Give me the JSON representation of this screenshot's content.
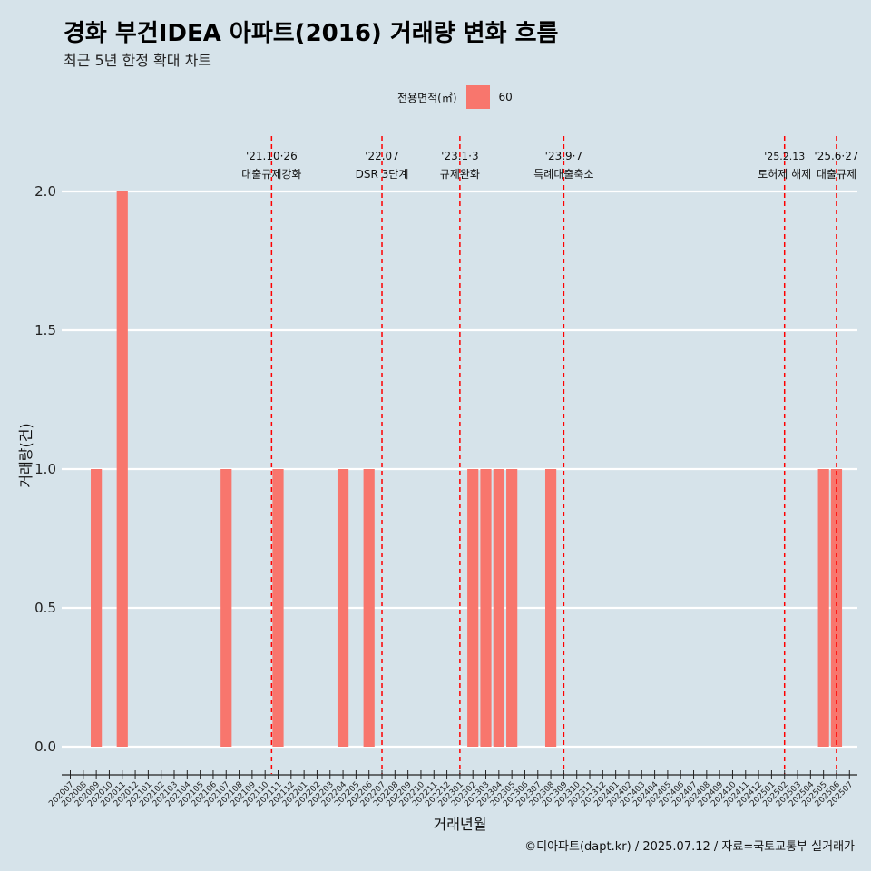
{
  "title": "경화 부건IDEA 아파트(2016) 거래량 변화 흐름",
  "subtitle": "최근 5년 한정 확대 차트",
  "caption": "©디아파트(dapt.kr) / 2025.07.12 / 자료=국토교통부 실거래가",
  "legend": {
    "title": "전용면적(㎡)",
    "items": [
      {
        "label": "60",
        "color": "#f8766d"
      }
    ]
  },
  "chart_data": {
    "type": "bar",
    "xlabel": "거래년월",
    "ylabel": "거래량(건)",
    "ylim": [
      0,
      2
    ],
    "yticks": [
      "0.0",
      "0.5",
      "1.0",
      "1.5",
      "2.0"
    ],
    "grid": true,
    "legend_position": "top",
    "categories": [
      "202007",
      "202008",
      "202009",
      "202010",
      "202011",
      "202012",
      "202101",
      "202102",
      "202103",
      "202104",
      "202105",
      "202106",
      "202107",
      "202108",
      "202109",
      "202110",
      "202111",
      "202112",
      "202201",
      "202202",
      "202203",
      "202204",
      "202205",
      "202206",
      "202207",
      "202208",
      "202209",
      "202210",
      "202211",
      "202212",
      "202301",
      "202302",
      "202303",
      "202304",
      "202305",
      "202306",
      "202307",
      "202308",
      "202309",
      "202310",
      "202311",
      "202312",
      "202401",
      "202402",
      "202403",
      "202404",
      "202405",
      "202406",
      "202407",
      "202408",
      "202409",
      "202410",
      "202411",
      "202412",
      "202501",
      "202502",
      "202503",
      "202504",
      "202505",
      "202506",
      "202507"
    ],
    "series": [
      {
        "name": "60",
        "color": "#f8766d",
        "values": [
          0,
          0,
          1,
          0,
          2,
          0,
          0,
          0,
          0,
          0,
          0,
          0,
          1,
          0,
          0,
          0,
          1,
          0,
          0,
          0,
          0,
          1,
          0,
          1,
          0,
          0,
          0,
          0,
          0,
          0,
          0,
          1,
          1,
          1,
          1,
          0,
          0,
          1,
          0,
          0,
          0,
          0,
          0,
          0,
          0,
          0,
          0,
          0,
          0,
          0,
          0,
          0,
          0,
          0,
          0,
          0,
          0,
          0,
          1,
          1,
          0
        ]
      }
    ],
    "annotations": [
      {
        "x": 15.5,
        "line1": "'21.10·26",
        "line2": "대출규제강화"
      },
      {
        "x": 24.0,
        "line1": "'22.07",
        "line2": "DSR 3단계"
      },
      {
        "x": 30.0,
        "line1": "'23.1·3",
        "line2": "규제완화"
      },
      {
        "x": 38.0,
        "line1": "'23.9·7",
        "line2": "특례대출축소"
      },
      {
        "x": 55.0,
        "line1": "'25.2.13",
        "line2": "토허제 해제"
      },
      {
        "x": 59.0,
        "line1": "'25.6·27",
        "line2": "대출규제"
      }
    ]
  }
}
